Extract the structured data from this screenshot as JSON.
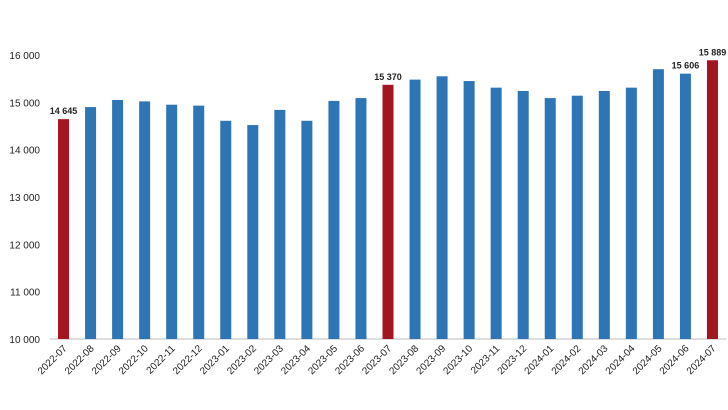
{
  "chart_data": {
    "type": "bar",
    "categories": [
      "2022-07",
      "2022-08",
      "2022-09",
      "2022-10",
      "2022-11",
      "2022-12",
      "2023-01",
      "2023-02",
      "2023-03",
      "2023-04",
      "2023-05",
      "2023-06",
      "2023-07",
      "2023-08",
      "2023-09",
      "2023-10",
      "2023-11",
      "2023-12",
      "2024-01",
      "2024-02",
      "2024-03",
      "2024-04",
      "2024-05",
      "2024-06",
      "2024-07"
    ],
    "values": [
      14645,
      14900,
      15050,
      15020,
      14950,
      14930,
      14610,
      14520,
      14840,
      14610,
      15030,
      15090,
      15370,
      15480,
      15550,
      15450,
      15310,
      15240,
      15090,
      15140,
      15240,
      15310,
      15700,
      15606,
      15889
    ],
    "value_labels": [
      "14 645",
      null,
      null,
      null,
      null,
      null,
      null,
      null,
      null,
      null,
      null,
      null,
      "15 370",
      null,
      null,
      null,
      null,
      null,
      null,
      null,
      null,
      null,
      null,
      "15 606",
      "15 889"
    ],
    "colors": [
      "#a3151f",
      "#2e75b6",
      "#2e75b6",
      "#2e75b6",
      "#2e75b6",
      "#2e75b6",
      "#2e75b6",
      "#2e75b6",
      "#2e75b6",
      "#2e75b6",
      "#2e75b6",
      "#2e75b6",
      "#a3151f",
      "#2e75b6",
      "#2e75b6",
      "#2e75b6",
      "#2e75b6",
      "#2e75b6",
      "#2e75b6",
      "#2e75b6",
      "#2e75b6",
      "#2e75b6",
      "#2e75b6",
      "#2e75b6",
      "#a3151f"
    ],
    "ylim": [
      10000,
      16000
    ],
    "yticks": [
      {
        "value": 10000,
        "label": "10 000"
      },
      {
        "value": 11000,
        "label": "11 000"
      },
      {
        "value": 12000,
        "label": "12 000"
      },
      {
        "value": 13000,
        "label": "13 000"
      },
      {
        "value": 14000,
        "label": "14 000"
      },
      {
        "value": 15000,
        "label": "15 000"
      },
      {
        "value": 16000,
        "label": "16 000"
      }
    ],
    "grid": false
  }
}
